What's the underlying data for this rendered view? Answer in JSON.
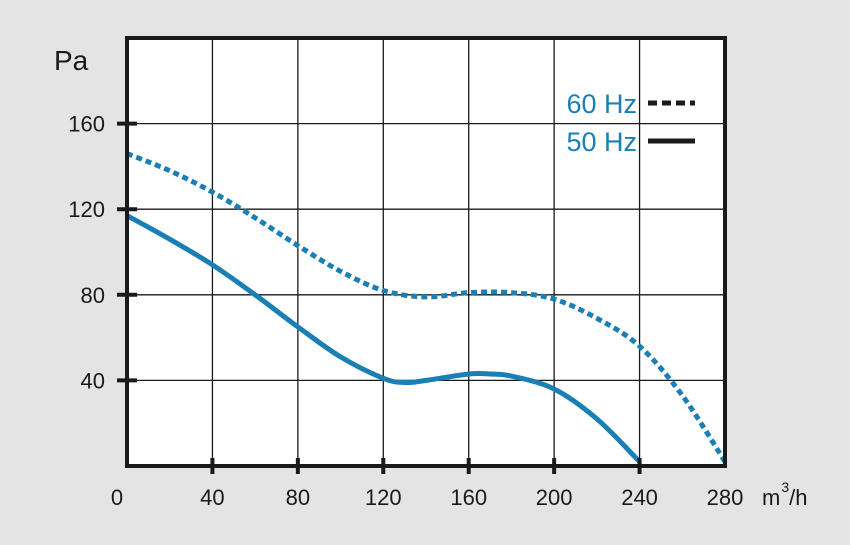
{
  "chart_data": {
    "type": "line",
    "title": "",
    "ylabel": "Pa",
    "xlabel_main": "m",
    "xlabel_sup": "3",
    "xlabel_tail": "/h",
    "xlim": [
      0,
      280
    ],
    "ylim": [
      0,
      200
    ],
    "x_ticks": [
      0,
      40,
      80,
      120,
      160,
      200,
      240,
      280
    ],
    "y_ticks": [
      40,
      80,
      120,
      160
    ],
    "grid": true,
    "legend_position": "top-right",
    "colors": {
      "curve": "#1a7fb5",
      "frame": "#1a1a1a",
      "background": "#ffffff",
      "page": "#e4e4e4"
    },
    "series": [
      {
        "name": "60 Hz",
        "style": "dashed",
        "x": [
          0,
          20,
          40,
          60,
          80,
          100,
          120,
          140,
          160,
          180,
          200,
          220,
          240,
          260,
          280
        ],
        "y": [
          146,
          138,
          128,
          116,
          103,
          91,
          82,
          79,
          81,
          81,
          78,
          69,
          56,
          33,
          2
        ]
      },
      {
        "name": "50 Hz",
        "style": "solid",
        "x": [
          0,
          20,
          40,
          60,
          80,
          100,
          120,
          130,
          140,
          160,
          170,
          180,
          200,
          220,
          240
        ],
        "y": [
          117,
          106,
          94,
          80,
          65,
          51,
          41,
          39,
          40,
          43,
          43,
          42,
          36,
          22,
          2
        ]
      }
    ]
  }
}
